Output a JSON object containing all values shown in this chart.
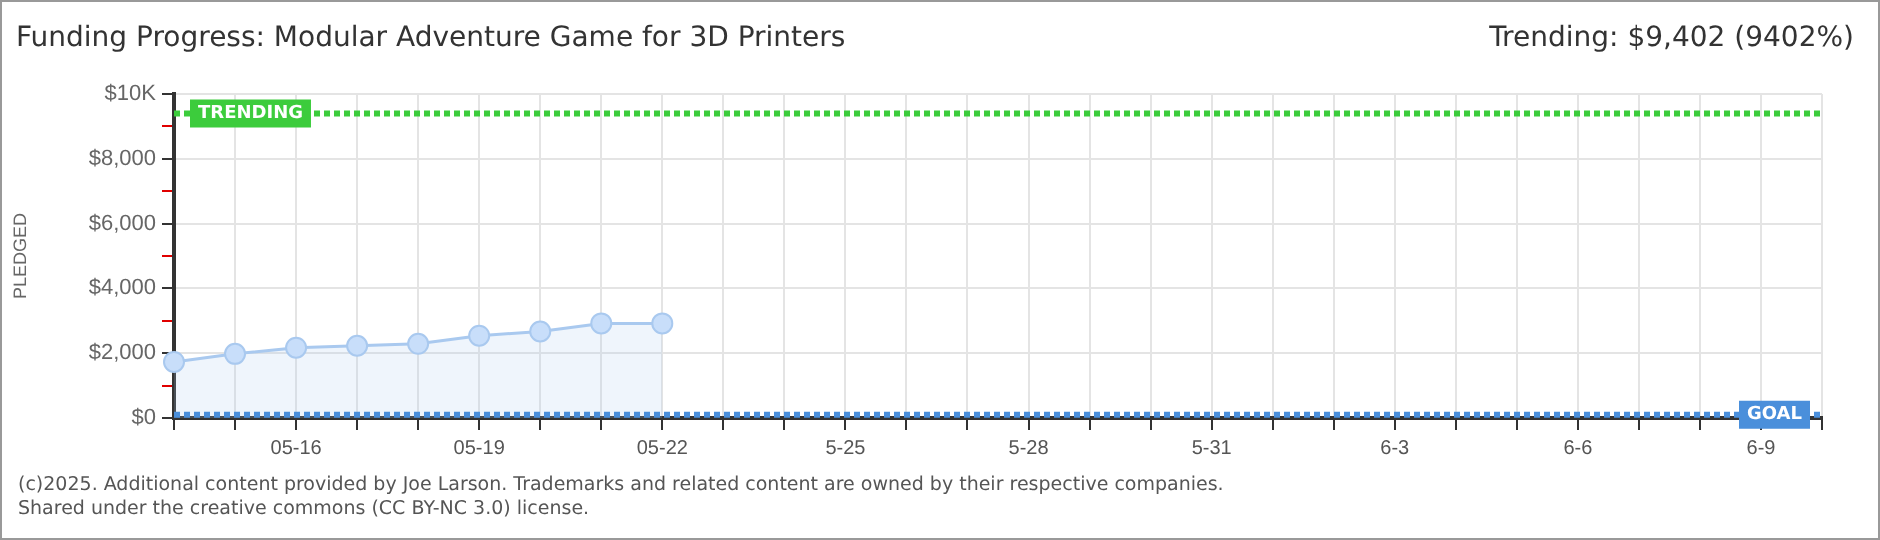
{
  "chart_data": {
    "type": "area",
    "title": "Funding Progress: Modular Adventure Game for 3D Printers",
    "subtitle": "Trending: $9,402 (9402%)",
    "ylabel": "PLEDGED",
    "categories": [
      null,
      null,
      "05-16",
      null,
      null,
      "05-19",
      null,
      null,
      "05-22",
      null,
      null,
      "5-25",
      null,
      null,
      "5-28",
      null,
      null,
      "5-31",
      null,
      null,
      "6-3",
      null,
      null,
      "6-6",
      null,
      null,
      "6-9",
      null
    ],
    "series": [
      {
        "color": "#a9c9ef",
        "values": [
          1730,
          1980,
          2170,
          2230,
          2290,
          2540,
          2670,
          2920,
          2920,
          null,
          null,
          null,
          null,
          null,
          null,
          null,
          null,
          null,
          null,
          null,
          null,
          null,
          null,
          null,
          null,
          null,
          null,
          null
        ]
      }
    ],
    "ylim": [
      0,
      10000
    ],
    "yticks": [
      {
        "value": 0,
        "label": "$0"
      },
      {
        "value": 1000,
        "label": null
      },
      {
        "value": 2000,
        "label": "$2,000"
      },
      {
        "value": 3000,
        "label": null
      },
      {
        "value": 4000,
        "label": "$4,000"
      },
      {
        "value": 5000,
        "label": null
      },
      {
        "value": 6000,
        "label": "$6,000"
      },
      {
        "value": 7000,
        "label": null
      },
      {
        "value": 8000,
        "label": "$8,000"
      },
      {
        "value": 9000,
        "label": null
      },
      {
        "value": 10000,
        "label": "$10K"
      }
    ],
    "ref_lines": [
      {
        "axis": "y",
        "value": 9402,
        "label": "TRENDING",
        "color": "#3ccc3c",
        "line_style": "dotted"
      },
      {
        "axis": "y",
        "value": 100,
        "label": "GOAL",
        "color": "#4a8fdb",
        "line_style": "dotted"
      }
    ],
    "annotations": [
      "(c)2025. Additional content provided by Joe Larson. Trademarks and related content are owned by their respective companies.",
      "Shared under the creative commons (CC BY-NC 3.0) license."
    ],
    "grid": true,
    "marker": "circle",
    "legend": false
  }
}
